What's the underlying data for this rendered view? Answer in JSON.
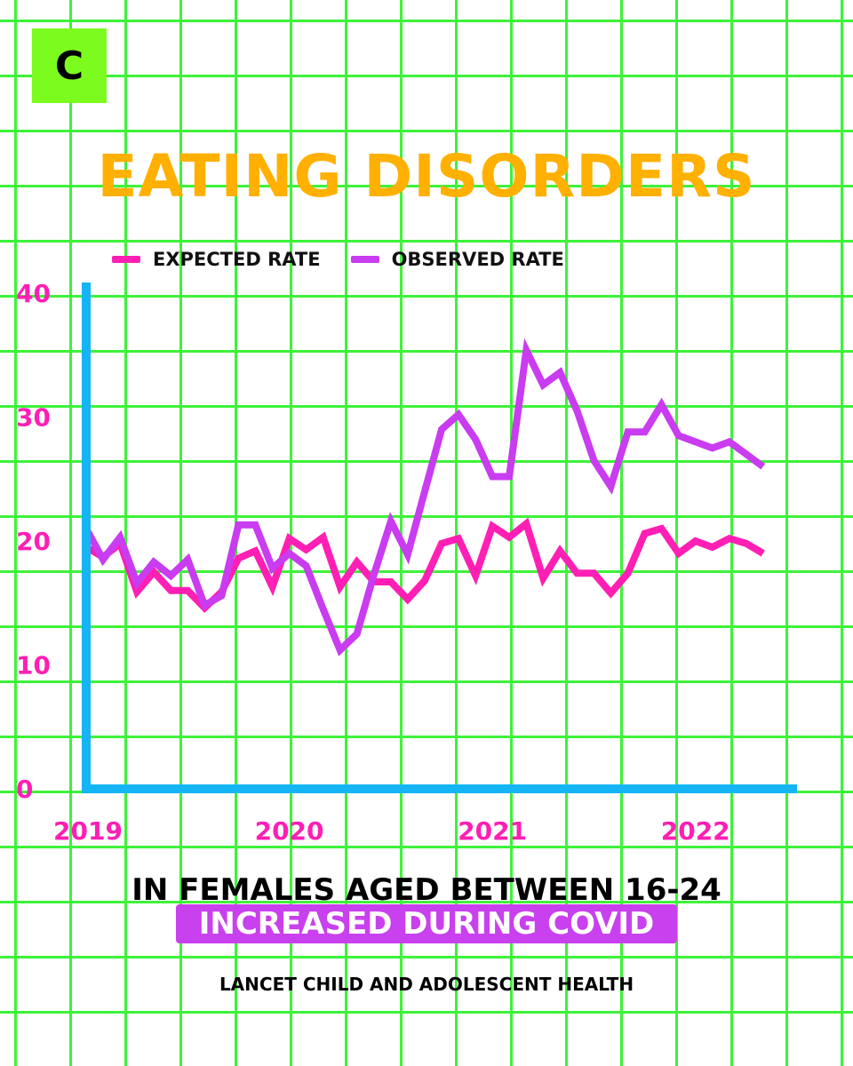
{
  "logo": {
    "letter": "C"
  },
  "title": "EATING DISORDERS",
  "colors": {
    "expected": "#ff1fb4",
    "observed": "#c93cf0",
    "axis": "#14b4f5",
    "grid": "#3ef23a",
    "title": "#ffb000",
    "logo_bg": "#7cfc1e"
  },
  "legend": [
    {
      "label": "EXPECTED RATE",
      "color": "#ff1fb4"
    },
    {
      "label": "OBSERVED RATE",
      "color": "#c93cf0"
    }
  ],
  "subtitle": "IN FEMALES AGED BETWEEN 16-24",
  "highlight": "INCREASED DURING COVID",
  "source": "LANCET CHILD AND ADOLESCENT HEALTH",
  "chart_data": {
    "type": "line",
    "title": "EATING DISORDERS",
    "xlabel": "",
    "ylabel": "",
    "ylim": [
      0,
      40
    ],
    "xlim": [
      2019,
      2022.5
    ],
    "yticks": [
      0,
      10,
      20,
      30,
      40
    ],
    "xticks": [
      {
        "value": 2019,
        "label": "2019"
      },
      {
        "value": 2020,
        "label": "2020"
      },
      {
        "value": 2021,
        "label": "2021"
      },
      {
        "value": 2022,
        "label": "2022"
      }
    ],
    "grid": true,
    "legend_position": "top",
    "series": [
      {
        "name": "EXPECTED RATE",
        "color": "#ff1fb4",
        "x": [
          2019.0,
          2019.083,
          2019.167,
          2019.25,
          2019.333,
          2019.417,
          2019.5,
          2019.583,
          2019.667,
          2019.75,
          2019.833,
          2019.917,
          2020.0,
          2020.083,
          2020.167,
          2020.25,
          2020.333,
          2020.417,
          2020.5,
          2020.583,
          2020.667,
          2020.75,
          2020.833,
          2020.917,
          2021.0,
          2021.083,
          2021.167,
          2021.25,
          2021.333,
          2021.417,
          2021.5,
          2021.583,
          2021.667,
          2021.75,
          2021.833,
          2021.917,
          2022.0,
          2022.083,
          2022.167,
          2022.25,
          2022.333
        ],
        "values": [
          19.5,
          18.7,
          19.8,
          15.9,
          17.5,
          16.0,
          16.0,
          14.6,
          15.9,
          18.6,
          19.2,
          16.3,
          20.2,
          19.3,
          20.3,
          16.3,
          18.3,
          16.7,
          16.7,
          15.3,
          16.8,
          19.8,
          20.2,
          17.2,
          21.2,
          20.3,
          21.4,
          17.0,
          19.2,
          17.4,
          17.4,
          15.8,
          17.4,
          20.6,
          21.0,
          19.0,
          20.0,
          19.5,
          20.2,
          19.8,
          19.0
        ]
      },
      {
        "name": "OBSERVED RATE",
        "color": "#c93cf0",
        "x": [
          2019.0,
          2019.083,
          2019.167,
          2019.25,
          2019.333,
          2019.417,
          2019.5,
          2019.583,
          2019.667,
          2019.75,
          2019.833,
          2019.917,
          2020.0,
          2020.083,
          2020.167,
          2020.25,
          2020.333,
          2020.417,
          2020.5,
          2020.583,
          2020.667,
          2020.75,
          2020.833,
          2020.917,
          2021.0,
          2021.083,
          2021.167,
          2021.25,
          2021.333,
          2021.417,
          2021.5,
          2021.583,
          2021.667,
          2021.75,
          2021.833,
          2021.917,
          2022.0,
          2022.083,
          2022.167,
          2022.25,
          2022.333
        ],
        "values": [
          21.0,
          18.5,
          20.3,
          16.6,
          18.3,
          17.2,
          18.5,
          14.8,
          15.6,
          21.3,
          21.3,
          17.8,
          19.0,
          18.0,
          14.5,
          11.2,
          12.5,
          17.3,
          21.6,
          18.9,
          24.0,
          29.0,
          30.2,
          28.2,
          25.2,
          25.2,
          35.4,
          32.6,
          33.6,
          30.5,
          26.5,
          24.4,
          28.8,
          28.8,
          31.0,
          28.5,
          28.0,
          27.5,
          28.0,
          27.0,
          26.0
        ]
      }
    ]
  }
}
